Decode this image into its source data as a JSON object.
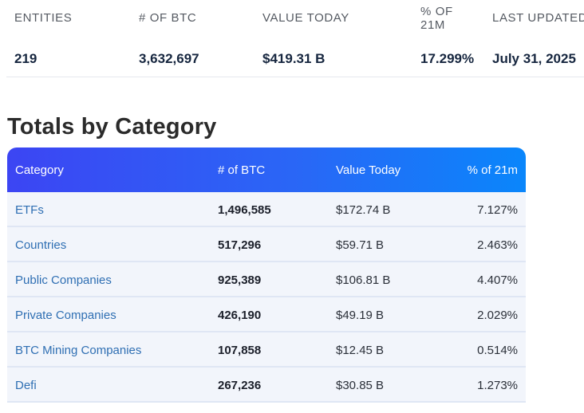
{
  "summary": {
    "entities_label": "ENTITIES",
    "entities_value": "219",
    "btc_label": "# OF BTC",
    "btc_value": "3,632,697",
    "value_label": "VALUE TODAY",
    "value_value": "$419.31 B",
    "pct_label": "% OF 21M",
    "pct_value": "17.299%",
    "updated_label": "LAST UPDATED",
    "updated_value": "July 31, 2025"
  },
  "section_title": "Totals by Category",
  "table": {
    "headers": {
      "category": "Category",
      "btc": "# of BTC",
      "value": "Value Today",
      "pct": "% of 21m"
    },
    "rows": [
      {
        "category": "ETFs",
        "btc": "1,496,585",
        "value": "$172.74 B",
        "pct": "7.127%"
      },
      {
        "category": "Countries",
        "btc": "517,296",
        "value": "$59.71 B",
        "pct": "2.463%"
      },
      {
        "category": "Public Companies",
        "btc": "925,389",
        "value": "$106.81 B",
        "pct": "4.407%"
      },
      {
        "category": "Private Companies",
        "btc": "426,190",
        "value": "$49.19 B",
        "pct": "2.029%"
      },
      {
        "category": "BTC Mining Companies",
        "btc": "107,858",
        "value": "$12.45 B",
        "pct": "0.514%"
      },
      {
        "category": "Defi",
        "btc": "267,236",
        "value": "$30.85 B",
        "pct": "1.273%"
      }
    ]
  }
}
